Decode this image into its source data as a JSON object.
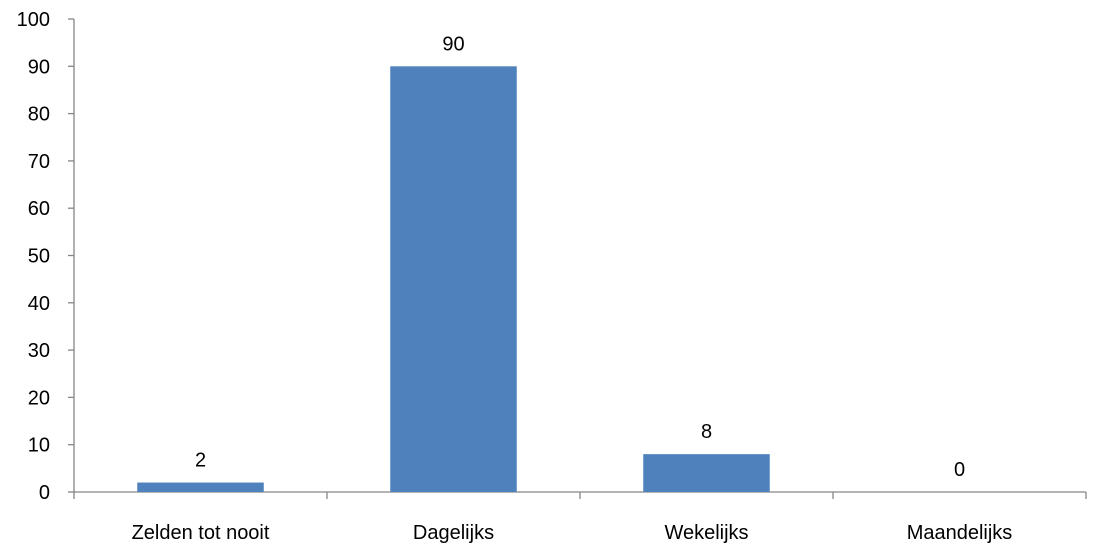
{
  "chart_data": {
    "type": "bar",
    "categories": [
      "Zelden tot nooit",
      "Dagelijks",
      "Wekelijks",
      "Maandelijks"
    ],
    "values": [
      2,
      90,
      8,
      0
    ],
    "data_labels": [
      "2",
      "90",
      "8",
      "0"
    ],
    "ylim": [
      0,
      100
    ],
    "y_ticks": [
      0,
      10,
      20,
      30,
      40,
      50,
      60,
      70,
      80,
      90,
      100
    ],
    "y_tick_labels": [
      "0",
      "10",
      "20",
      "30",
      "40",
      "50",
      "60",
      "70",
      "80",
      "90",
      "100"
    ],
    "title": "",
    "xlabel": "",
    "ylabel": "",
    "grid": false,
    "legend": "none",
    "bar_color": "#4F81BD",
    "axis_color": "#868686"
  }
}
